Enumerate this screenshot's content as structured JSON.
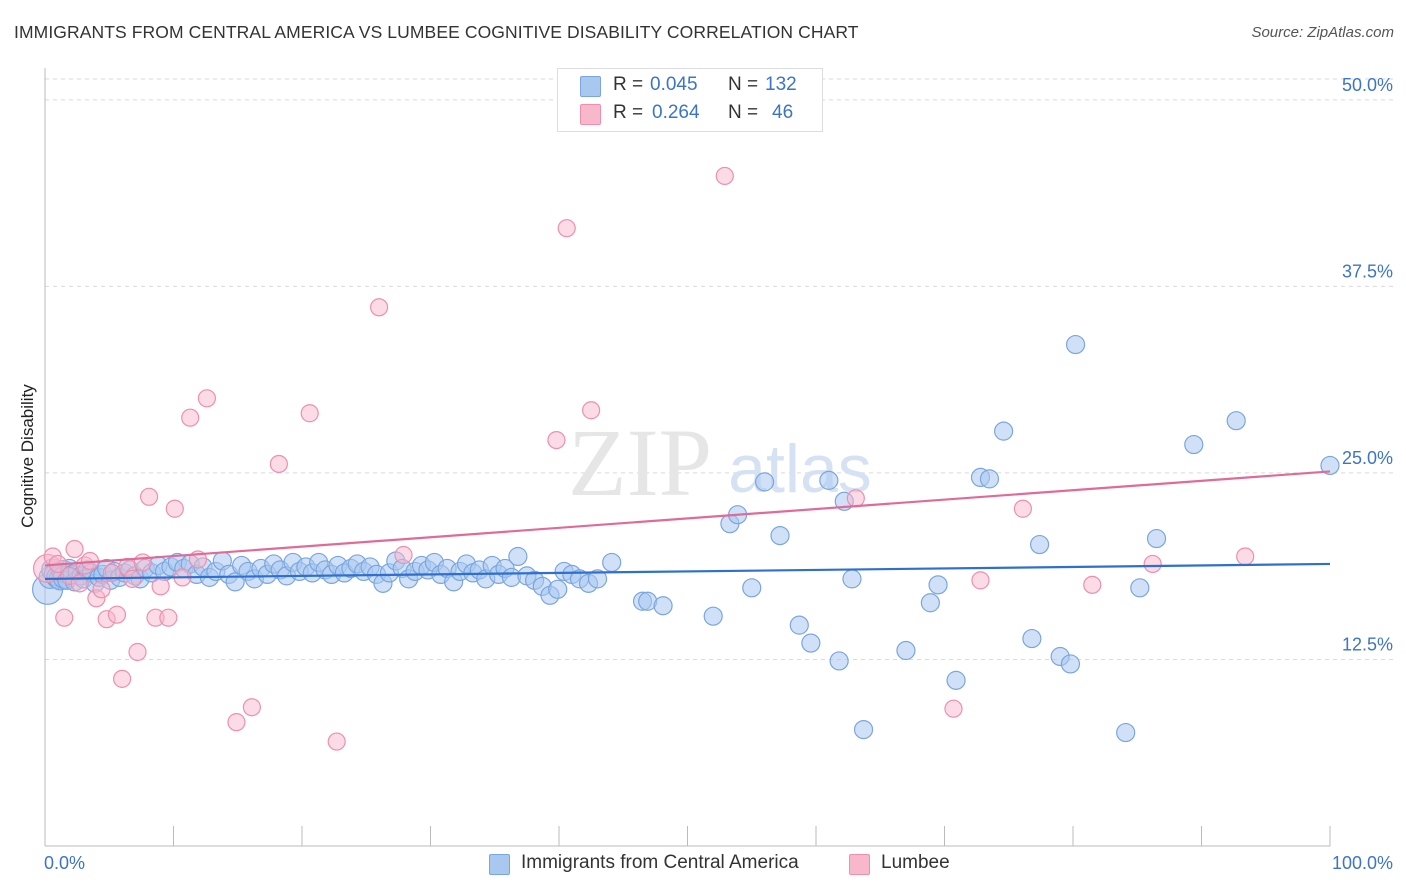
{
  "header": {
    "title": "IMMIGRANTS FROM CENTRAL AMERICA VS LUMBEE COGNITIVE DISABILITY CORRELATION CHART",
    "source": "Source: ZipAtlas.com"
  },
  "watermark": {
    "part1": "ZIP",
    "part2": "atlas"
  },
  "legend_top": [
    {
      "r_label": "R =",
      "r_value": "0.045",
      "n_label": "N =",
      "n_value": "132"
    },
    {
      "r_label": "R =",
      "r_value": "0.264",
      "n_label": "N =",
      "n_value": "46"
    }
  ],
  "legend_bottom": [
    {
      "label": "Immigrants from Central America"
    },
    {
      "label": "Lumbee"
    }
  ],
  "colors": {
    "blue_fill": "#a9c8f0",
    "blue_stroke": "#7aa6de",
    "blue_line": "#2f6fd0",
    "pink_fill": "#f7b8cc",
    "pink_stroke": "#ee8fae",
    "pink_line": "#e06b96",
    "tick_label": "#3d74c7",
    "grid": "#d9d9d9"
  },
  "chart_data": {
    "type": "scatter",
    "title": "IMMIGRANTS FROM CENTRAL AMERICA VS LUMBEE COGNITIVE DISABILITY CORRELATION CHART",
    "xlabel": "",
    "ylabel": "Cognitive Disability",
    "xlim": [
      0,
      100
    ],
    "ylim": [
      0,
      52
    ],
    "x_tick_labels": [
      "0.0%",
      "100.0%"
    ],
    "y_ticks": [
      12.5,
      25.0,
      37.5,
      50.0
    ],
    "y_tick_labels": [
      "12.5%",
      "25.0%",
      "37.5%",
      "50.0%"
    ],
    "grid": "horizontal dashed",
    "legend_placement": "top-center and bottom",
    "series": [
      {
        "name": "Immigrants from Central America",
        "color": "#a9c8f0",
        "trend": {
          "x": [
            0,
            100
          ],
          "y": [
            17.9,
            18.9
          ]
        },
        "points": [
          [
            0.2,
            17.2
          ],
          [
            0.4,
            18.0
          ],
          [
            0.6,
            18.5
          ],
          [
            0.8,
            18.2
          ],
          [
            1.0,
            18.0
          ],
          [
            1.2,
            17.9
          ],
          [
            1.4,
            18.4
          ],
          [
            1.5,
            18.0
          ],
          [
            1.7,
            17.8
          ],
          [
            1.9,
            18.6
          ],
          [
            2.1,
            18.2
          ],
          [
            2.3,
            17.7
          ],
          [
            2.5,
            18.4
          ],
          [
            2.8,
            18.1
          ],
          [
            3.0,
            17.9
          ],
          [
            3.3,
            18.5
          ],
          [
            3.6,
            18.3
          ],
          [
            3.9,
            17.6
          ],
          [
            4.2,
            18.0
          ],
          [
            4.5,
            18.2
          ],
          [
            4.8,
            18.6
          ],
          [
            5.1,
            17.8
          ],
          [
            5.4,
            18.4
          ],
          [
            5.8,
            18.0
          ],
          [
            6.2,
            18.3
          ],
          [
            6.6,
            18.5
          ],
          [
            7.0,
            18.1
          ],
          [
            7.4,
            17.9
          ],
          [
            7.8,
            18.6
          ],
          [
            8.3,
            18.3
          ],
          [
            8.8,
            18.8
          ],
          [
            9.3,
            18.4
          ],
          [
            9.8,
            18.7
          ],
          [
            10.3,
            19.0
          ],
          [
            10.8,
            18.6
          ],
          [
            11.3,
            18.9
          ],
          [
            11.8,
            18.2
          ],
          [
            12.3,
            18.7
          ],
          [
            12.8,
            18.0
          ],
          [
            13.3,
            18.4
          ],
          [
            13.8,
            19.1
          ],
          [
            14.3,
            18.2
          ],
          [
            14.8,
            17.7
          ],
          [
            15.3,
            18.8
          ],
          [
            15.8,
            18.4
          ],
          [
            16.3,
            17.9
          ],
          [
            16.8,
            18.6
          ],
          [
            17.3,
            18.2
          ],
          [
            17.8,
            18.9
          ],
          [
            18.3,
            18.5
          ],
          [
            18.8,
            18.1
          ],
          [
            19.3,
            19.0
          ],
          [
            19.8,
            18.4
          ],
          [
            20.3,
            18.7
          ],
          [
            20.8,
            18.3
          ],
          [
            21.3,
            19.0
          ],
          [
            21.8,
            18.5
          ],
          [
            22.3,
            18.2
          ],
          [
            22.8,
            18.8
          ],
          [
            23.3,
            18.3
          ],
          [
            23.8,
            18.6
          ],
          [
            24.3,
            18.9
          ],
          [
            24.8,
            18.4
          ],
          [
            25.3,
            18.7
          ],
          [
            25.8,
            18.2
          ],
          [
            26.3,
            17.6
          ],
          [
            26.8,
            18.3
          ],
          [
            27.3,
            19.1
          ],
          [
            27.8,
            18.6
          ],
          [
            28.3,
            17.9
          ],
          [
            28.8,
            18.4
          ],
          [
            29.3,
            18.8
          ],
          [
            29.8,
            18.5
          ],
          [
            30.3,
            19.0
          ],
          [
            30.8,
            18.2
          ],
          [
            31.3,
            18.6
          ],
          [
            31.8,
            17.7
          ],
          [
            32.3,
            18.4
          ],
          [
            32.8,
            18.9
          ],
          [
            33.3,
            18.3
          ],
          [
            33.8,
            18.5
          ],
          [
            34.3,
            17.9
          ],
          [
            34.8,
            18.8
          ],
          [
            35.3,
            18.2
          ],
          [
            35.8,
            18.6
          ],
          [
            36.3,
            18.0
          ],
          [
            36.8,
            19.4
          ],
          [
            37.5,
            18.1
          ],
          [
            38.1,
            17.8
          ],
          [
            38.7,
            17.4
          ],
          [
            39.3,
            16.8
          ],
          [
            39.9,
            17.2
          ],
          [
            40.4,
            18.4
          ],
          [
            41.0,
            18.2
          ],
          [
            41.6,
            17.9
          ],
          [
            42.3,
            17.6
          ],
          [
            43.0,
            17.9
          ],
          [
            44.1,
            19.0
          ],
          [
            46.5,
            16.4
          ],
          [
            46.9,
            16.4
          ],
          [
            48.1,
            16.1
          ],
          [
            52.0,
            15.4
          ],
          [
            53.3,
            21.6
          ],
          [
            53.9,
            22.2
          ],
          [
            55.0,
            17.3
          ],
          [
            56.0,
            24.4
          ],
          [
            57.2,
            20.8
          ],
          [
            58.7,
            14.8
          ],
          [
            59.6,
            13.6
          ],
          [
            61.0,
            24.5
          ],
          [
            61.8,
            12.4
          ],
          [
            62.2,
            23.1
          ],
          [
            63.7,
            7.8
          ],
          [
            67.0,
            13.1
          ],
          [
            68.9,
            16.3
          ],
          [
            69.5,
            17.5
          ],
          [
            70.9,
            11.1
          ],
          [
            72.8,
            24.7
          ],
          [
            73.5,
            24.6
          ],
          [
            74.6,
            27.8
          ],
          [
            76.8,
            13.9
          ],
          [
            77.4,
            20.2
          ],
          [
            79.0,
            12.7
          ],
          [
            79.8,
            12.2
          ],
          [
            80.2,
            33.6
          ],
          [
            84.1,
            7.6
          ],
          [
            85.2,
            17.3
          ],
          [
            86.5,
            20.6
          ],
          [
            89.4,
            26.9
          ],
          [
            92.7,
            28.5
          ],
          [
            62.8,
            17.9
          ],
          [
            100.0,
            25.5
          ]
        ]
      },
      {
        "name": "Lumbee",
        "color": "#f7b8cc",
        "trend": {
          "x": [
            0,
            100
          ],
          "y": [
            18.8,
            25.1
          ]
        },
        "points": [
          [
            0.2,
            18.6
          ],
          [
            0.6,
            19.4
          ],
          [
            1.0,
            18.9
          ],
          [
            1.5,
            15.3
          ],
          [
            1.9,
            18.1
          ],
          [
            2.3,
            19.9
          ],
          [
            2.7,
            17.6
          ],
          [
            3.1,
            18.8
          ],
          [
            3.5,
            19.1
          ],
          [
            4.0,
            16.6
          ],
          [
            4.4,
            17.2
          ],
          [
            4.8,
            15.2
          ],
          [
            5.2,
            18.3
          ],
          [
            5.6,
            15.5
          ],
          [
            6.0,
            11.2
          ],
          [
            6.4,
            18.7
          ],
          [
            6.8,
            17.9
          ],
          [
            7.2,
            13.0
          ],
          [
            7.6,
            19.0
          ],
          [
            8.1,
            23.4
          ],
          [
            8.6,
            15.3
          ],
          [
            9.0,
            17.4
          ],
          [
            9.6,
            15.3
          ],
          [
            10.1,
            22.6
          ],
          [
            10.7,
            18.0
          ],
          [
            11.3,
            28.7
          ],
          [
            11.9,
            19.2
          ],
          [
            12.6,
            30.0
          ],
          [
            14.9,
            8.3
          ],
          [
            16.1,
            9.3
          ],
          [
            18.2,
            25.6
          ],
          [
            20.6,
            29.0
          ],
          [
            22.7,
            7.0
          ],
          [
            26.0,
            36.1
          ],
          [
            27.9,
            19.5
          ],
          [
            39.8,
            27.2
          ],
          [
            40.6,
            41.4
          ],
          [
            42.5,
            29.2
          ],
          [
            52.9,
            44.9
          ],
          [
            63.1,
            23.3
          ],
          [
            70.7,
            9.2
          ],
          [
            72.8,
            17.8
          ],
          [
            76.1,
            22.6
          ],
          [
            81.5,
            17.5
          ],
          [
            86.2,
            18.9
          ],
          [
            93.4,
            19.4
          ]
        ]
      }
    ]
  }
}
